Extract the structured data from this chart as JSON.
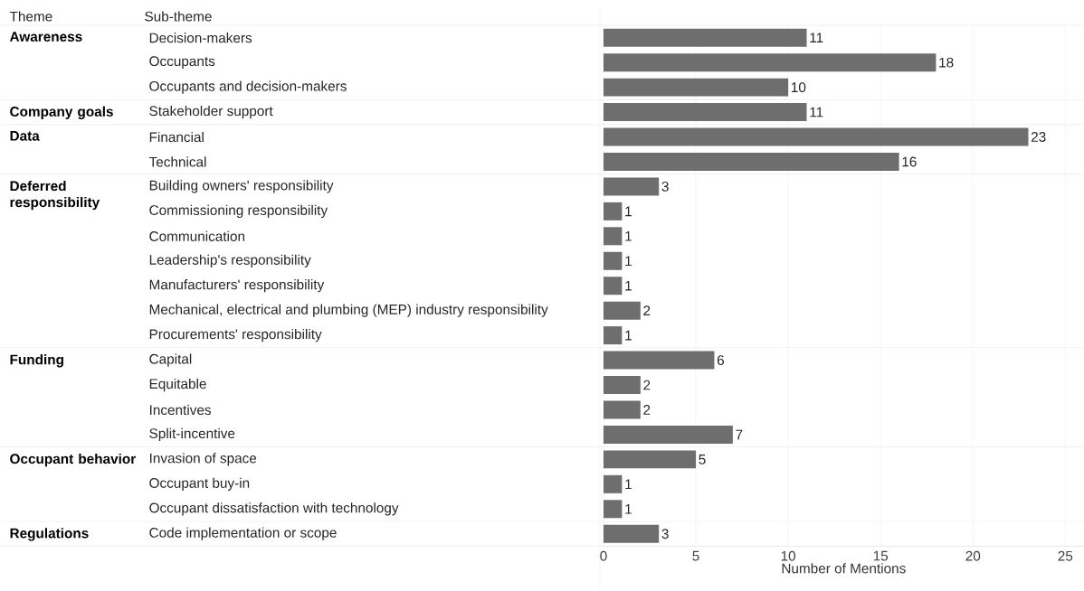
{
  "chart_data": {
    "type": "bar",
    "orientation": "horizontal",
    "xlabel": "Number of Mentions",
    "categories": [
      "Decision-makers",
      "Occupants",
      "Occupants and decision-makers",
      "Stakeholder support",
      "Financial",
      "Technical",
      "Building owners' responsibility",
      "Commissioning responsibility",
      "Communication",
      "Leadership's responsibility",
      "Manufacturers' responsibility",
      "Mechanical, electrical and plumbing (MEP) industry responsibility",
      "Procurements' responsibility",
      "Capital",
      "Equitable",
      "Incentives",
      "Split-incentive",
      "Invasion of space",
      "Occupant buy-in",
      "Occupant dissatisfaction with technology",
      "Code implementation or scope"
    ],
    "values": [
      11,
      18,
      10,
      11,
      23,
      16,
      3,
      1,
      1,
      1,
      1,
      2,
      1,
      6,
      2,
      2,
      7,
      5,
      1,
      1,
      3
    ],
    "color": "#6e6e6e",
    "data_labels": true,
    "grid": "x",
    "xlim": [
      0,
      26
    ],
    "xticks": [
      0,
      5,
      10,
      15,
      20,
      25
    ],
    "annotations": [
      "Theme",
      "Sub-theme",
      "Awareness",
      "Company goals",
      "Data",
      "Deferred responsibility",
      "Funding",
      "Occupant behavior",
      "Regulations"
    ]
  }
}
